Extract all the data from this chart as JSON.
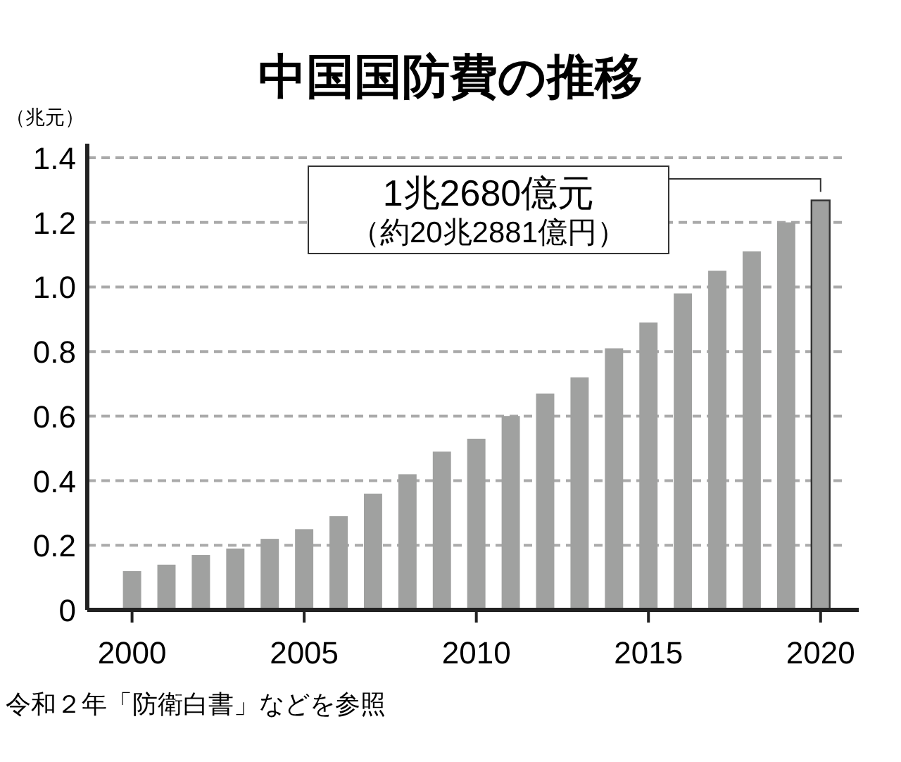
{
  "chart_data": {
    "type": "bar",
    "title": "中国国防費の推移",
    "ylabel": "（兆元）",
    "x": [
      2000,
      2001,
      2002,
      2003,
      2004,
      2005,
      2006,
      2007,
      2008,
      2009,
      2010,
      2011,
      2012,
      2013,
      2014,
      2015,
      2016,
      2017,
      2018,
      2019,
      2020
    ],
    "values": [
      0.12,
      0.14,
      0.17,
      0.19,
      0.22,
      0.25,
      0.29,
      0.36,
      0.42,
      0.49,
      0.53,
      0.6,
      0.67,
      0.72,
      0.81,
      0.89,
      0.98,
      1.05,
      1.11,
      1.2,
      1.268
    ],
    "color": "#a0a1a0",
    "xlim": [
      1998.7,
      2020.7
    ],
    "xticks": [
      2000,
      2005,
      2010,
      2015,
      2020
    ],
    "ylim": [
      0,
      1.4
    ],
    "yticks": [
      0,
      0.2,
      0.4,
      0.6,
      0.8,
      {
        "value": 1,
        "label": "1.0"
      },
      1.2,
      1.4
    ],
    "grid": "y",
    "annotations": [
      "1兆2680億元",
      "（約20兆2881億円）",
      "令和２年「防衛白書」などを参照"
    ]
  }
}
